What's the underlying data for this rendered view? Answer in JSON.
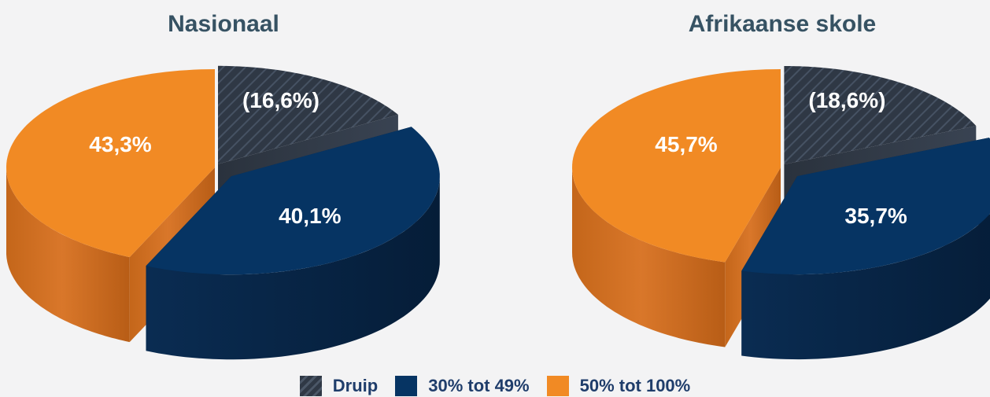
{
  "colors": {
    "druip": "#2f3845",
    "band30": "#063463",
    "band50": "#f18a24"
  },
  "chart_data": [
    {
      "type": "pie",
      "title": "Nasionaal",
      "slices": [
        {
          "category": "Druip",
          "value": 16.6,
          "label": "(16,6%)"
        },
        {
          "category": "30% tot 49%",
          "value": 40.1,
          "label": "40,1%"
        },
        {
          "category": "50% tot 100%",
          "value": 43.3,
          "label": "43,3%"
        }
      ]
    },
    {
      "type": "pie",
      "title": "Afrikaanse skole",
      "slices": [
        {
          "category": "Druip",
          "value": 18.6,
          "label": "(18,6%)"
        },
        {
          "category": "30% tot 49%",
          "value": 35.7,
          "label": "35,7%"
        },
        {
          "category": "50% tot 100%",
          "value": 45.7,
          "label": "45,7%"
        }
      ]
    }
  ],
  "legend": {
    "placement": "bottom-center",
    "items": [
      {
        "label": "Druip",
        "pattern": "hatched"
      },
      {
        "label": "30% tot 49%"
      },
      {
        "label": "50% tot 100%"
      }
    ]
  }
}
